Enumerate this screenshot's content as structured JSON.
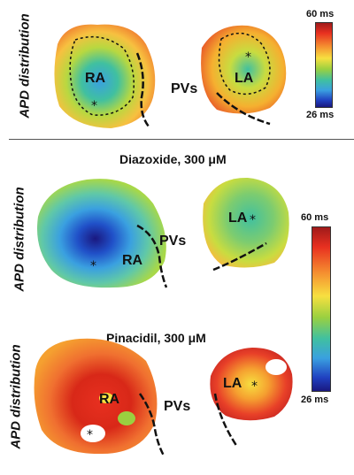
{
  "panels": [
    {
      "row_label": "APD distribution",
      "title": "",
      "labels": {
        "ra": "RA",
        "la": "LA",
        "pvs": "PVs"
      },
      "colorbar": {
        "max": "60 ms",
        "min": "26 ms"
      }
    },
    {
      "row_label": "APD distribution",
      "title": "Diazoxide, 300 μM",
      "labels": {
        "ra": "RA",
        "la": "LA",
        "pvs": "PVs"
      },
      "colorbar": {
        "max": "60 ms",
        "min": "26 ms"
      }
    },
    {
      "row_label": "APD distribution",
      "title": "Pinacidil, 300 μM",
      "labels": {
        "ra": "RA",
        "la": "LA",
        "pvs": "PVs"
      },
      "colorbar": {
        "max": "",
        "min": ""
      }
    }
  ],
  "colors": {
    "apd_high": "#a01a1a",
    "apd_mid": "#9ad040",
    "apd_low": "#1a1880"
  }
}
